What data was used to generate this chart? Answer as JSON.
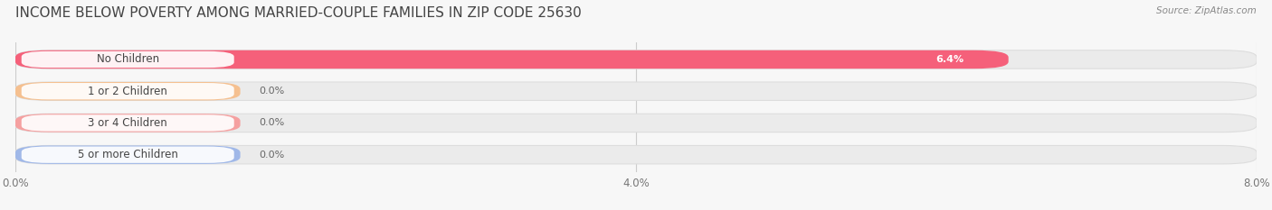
{
  "title": "INCOME BELOW POVERTY AMONG MARRIED-COUPLE FAMILIES IN ZIP CODE 25630",
  "source": "Source: ZipAtlas.com",
  "categories": [
    "No Children",
    "1 or 2 Children",
    "3 or 4 Children",
    "5 or more Children"
  ],
  "values": [
    6.4,
    0.0,
    0.0,
    0.0
  ],
  "bar_colors": [
    "#F5607A",
    "#F5C090",
    "#F5A0A0",
    "#A0B8E8"
  ],
  "xlim": [
    0,
    8.0
  ],
  "xticks": [
    0.0,
    4.0,
    8.0
  ],
  "xtick_labels": [
    "0.0%",
    "4.0%",
    "8.0%"
  ],
  "background_color": "#f7f7f7",
  "bar_bg_color": "#ebebeb",
  "title_fontsize": 11,
  "label_fontsize": 8.5,
  "value_fontsize": 8,
  "figsize": [
    14.06,
    2.33
  ],
  "dpi": 100
}
